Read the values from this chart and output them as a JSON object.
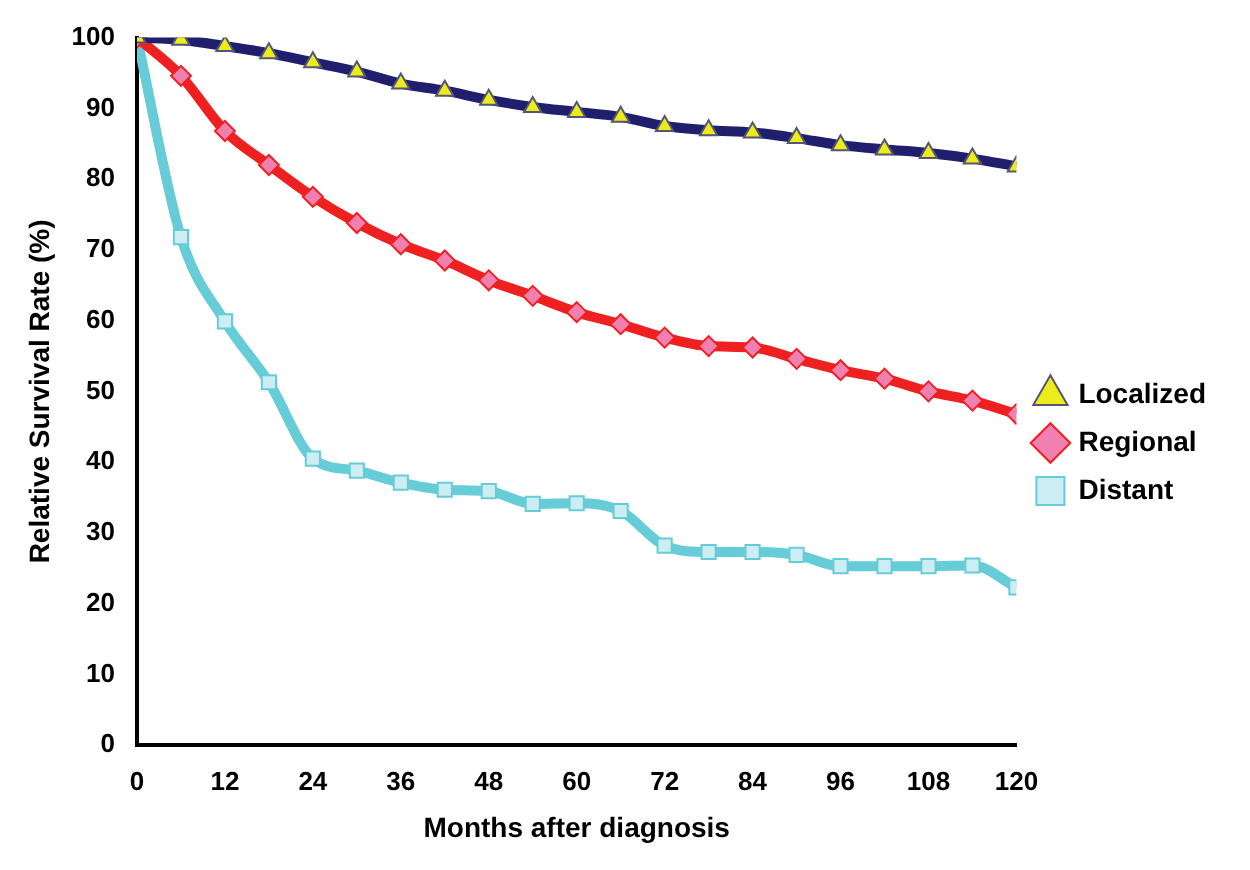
{
  "chart_data": {
    "type": "line",
    "xlabel": "Months after diagnosis",
    "ylabel": "Relative Survival Rate (%)",
    "x": [
      0,
      6,
      12,
      18,
      24,
      30,
      36,
      42,
      48,
      54,
      60,
      66,
      72,
      78,
      84,
      90,
      96,
      102,
      108,
      114,
      120
    ],
    "xlim": [
      0,
      120
    ],
    "xticks": [
      0,
      12,
      24,
      36,
      48,
      60,
      72,
      84,
      96,
      108,
      120
    ],
    "ylim": [
      0,
      100
    ],
    "yticks": [
      0,
      10,
      20,
      30,
      40,
      50,
      60,
      70,
      80,
      90,
      100
    ],
    "grid": false,
    "legend": "right",
    "series": [
      {
        "name": "Localized",
        "color": "#1f1f6e",
        "marker": "triangle",
        "values": [
          100,
          99.7,
          98.8,
          97.8,
          96.5,
          95.2,
          93.5,
          92.5,
          91.2,
          90.2,
          89.5,
          88.8,
          87.5,
          86.9,
          86.6,
          85.8,
          84.8,
          84.2,
          83.7,
          82.9,
          81.8
        ]
      },
      {
        "name": "Regional",
        "color": "#ee2020",
        "marker": "diamond",
        "values": [
          100,
          94.6,
          86.8,
          82,
          77.5,
          73.8,
          70.8,
          68.5,
          65.7,
          63.5,
          61.2,
          59.5,
          57.6,
          56.4,
          56.2,
          54.6,
          53,
          51.8,
          50,
          48.7,
          46.8
        ]
      },
      {
        "name": "Distant",
        "color": "#66ccd8",
        "marker": "square",
        "values": [
          100,
          71.8,
          59.9,
          51.3,
          40.5,
          38.8,
          37.1,
          36.1,
          35.9,
          34.1,
          34.2,
          33.1,
          28.2,
          27.3,
          27.3,
          26.9,
          25.3,
          25.3,
          25.3,
          25.4,
          22.3
        ]
      }
    ]
  }
}
